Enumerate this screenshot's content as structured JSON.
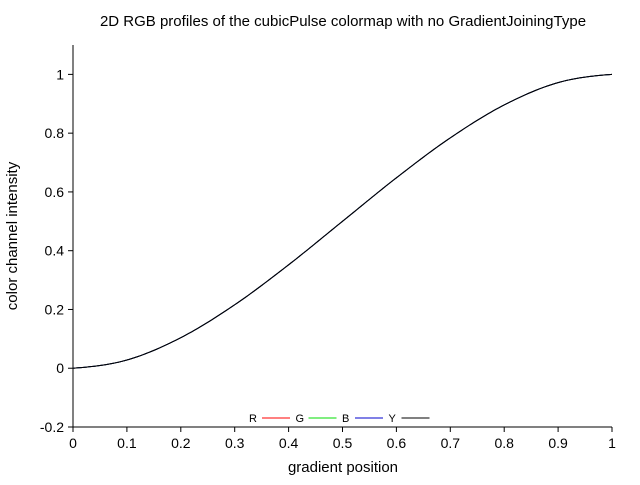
{
  "chart_data": {
    "type": "line",
    "title": "2D RGB profiles of the cubicPulse colormap with no GradientJoiningType",
    "xlabel": "gradient position",
    "ylabel": "color channel intensity",
    "xlim": [
      0,
      1
    ],
    "ylim": [
      -0.2,
      1.1
    ],
    "x_ticks": [
      0,
      0.1,
      0.2,
      0.3,
      0.4,
      0.5,
      0.6,
      0.7,
      0.8,
      0.9,
      1
    ],
    "x_tick_labels": [
      "0",
      "0.1",
      "0.2",
      "0.3",
      "0.4",
      "0.5",
      "0.6",
      "0.7",
      "0.8",
      "0.9",
      "1"
    ],
    "y_ticks": [
      -0.2,
      0,
      0.2,
      0.4,
      0.6,
      0.8,
      1
    ],
    "y_tick_labels": [
      "-0.2",
      "0",
      "0.2",
      "0.4",
      "0.6",
      "0.8",
      "1"
    ],
    "grid": false,
    "legend_position": "bottom-center",
    "series": [
      {
        "name": "R",
        "color": "#ff0000",
        "x": [
          0,
          0.1,
          0.2,
          0.3,
          0.4,
          0.5,
          0.6,
          0.7,
          0.8,
          0.9,
          1
        ],
        "values": [
          0,
          0.028,
          0.104,
          0.216,
          0.352,
          0.5,
          0.648,
          0.784,
          0.896,
          0.972,
          1
        ]
      },
      {
        "name": "G",
        "color": "#00dd00",
        "x": [
          0,
          0.1,
          0.2,
          0.3,
          0.4,
          0.5,
          0.6,
          0.7,
          0.8,
          0.9,
          1
        ],
        "values": [
          0,
          0.028,
          0.104,
          0.216,
          0.352,
          0.5,
          0.648,
          0.784,
          0.896,
          0.972,
          1
        ]
      },
      {
        "name": "B",
        "color": "#0000cc",
        "x": [
          0,
          0.1,
          0.2,
          0.3,
          0.4,
          0.5,
          0.6,
          0.7,
          0.8,
          0.9,
          1
        ],
        "values": [
          0,
          0.028,
          0.104,
          0.216,
          0.352,
          0.5,
          0.648,
          0.784,
          0.896,
          0.972,
          1
        ]
      },
      {
        "name": "Y",
        "color": "#000000",
        "x": [
          0,
          0.1,
          0.2,
          0.3,
          0.4,
          0.5,
          0.6,
          0.7,
          0.8,
          0.9,
          1
        ],
        "values": [
          0,
          0.028,
          0.104,
          0.216,
          0.352,
          0.5,
          0.648,
          0.784,
          0.896,
          0.972,
          1
        ]
      }
    ]
  }
}
